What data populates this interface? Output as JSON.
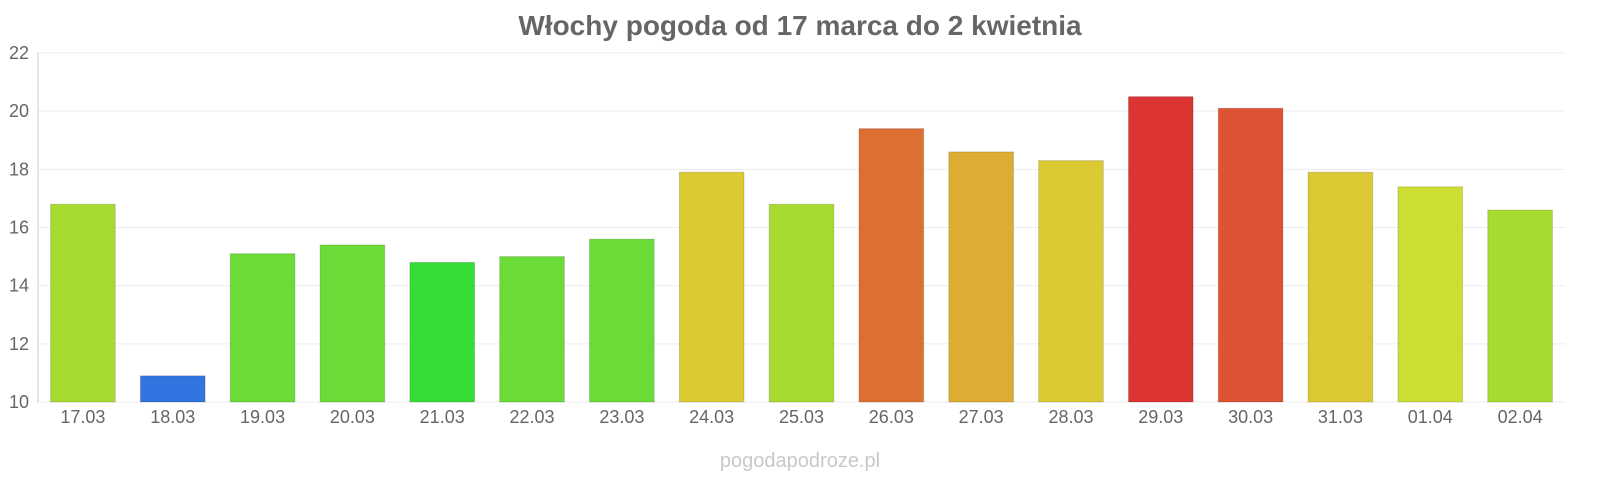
{
  "chart_data": {
    "type": "bar",
    "title": "Włochy pogoda od 17 marca do 2 kwietnia",
    "xlabel": "",
    "ylabel": "",
    "ylim": [
      10,
      22
    ],
    "yticks": [
      10,
      12,
      14,
      16,
      18,
      20,
      22
    ],
    "grid": true,
    "categories": [
      "17.03",
      "18.03",
      "19.03",
      "20.03",
      "21.03",
      "22.03",
      "23.03",
      "24.03",
      "25.03",
      "26.03",
      "27.03",
      "28.03",
      "29.03",
      "30.03",
      "31.03",
      "01.04",
      "02.04"
    ],
    "values": [
      16.8,
      10.9,
      15.1,
      15.4,
      14.8,
      15.0,
      15.6,
      17.9,
      16.8,
      19.4,
      18.6,
      18.3,
      20.5,
      20.1,
      17.9,
      17.4,
      16.6
    ],
    "colors": [
      "#a8db30",
      "#3175e0",
      "#6bdc37",
      "#6bdc37",
      "#36dc36",
      "#6bdc37",
      "#6bdc37",
      "#dcca33",
      "#a8db30",
      "#de6f33",
      "#dcac33",
      "#dcca33",
      "#dc3333",
      "#de5333",
      "#dcc833",
      "#cdde33",
      "#a8db30"
    ]
  },
  "watermark": "pogodapodroze.pl"
}
